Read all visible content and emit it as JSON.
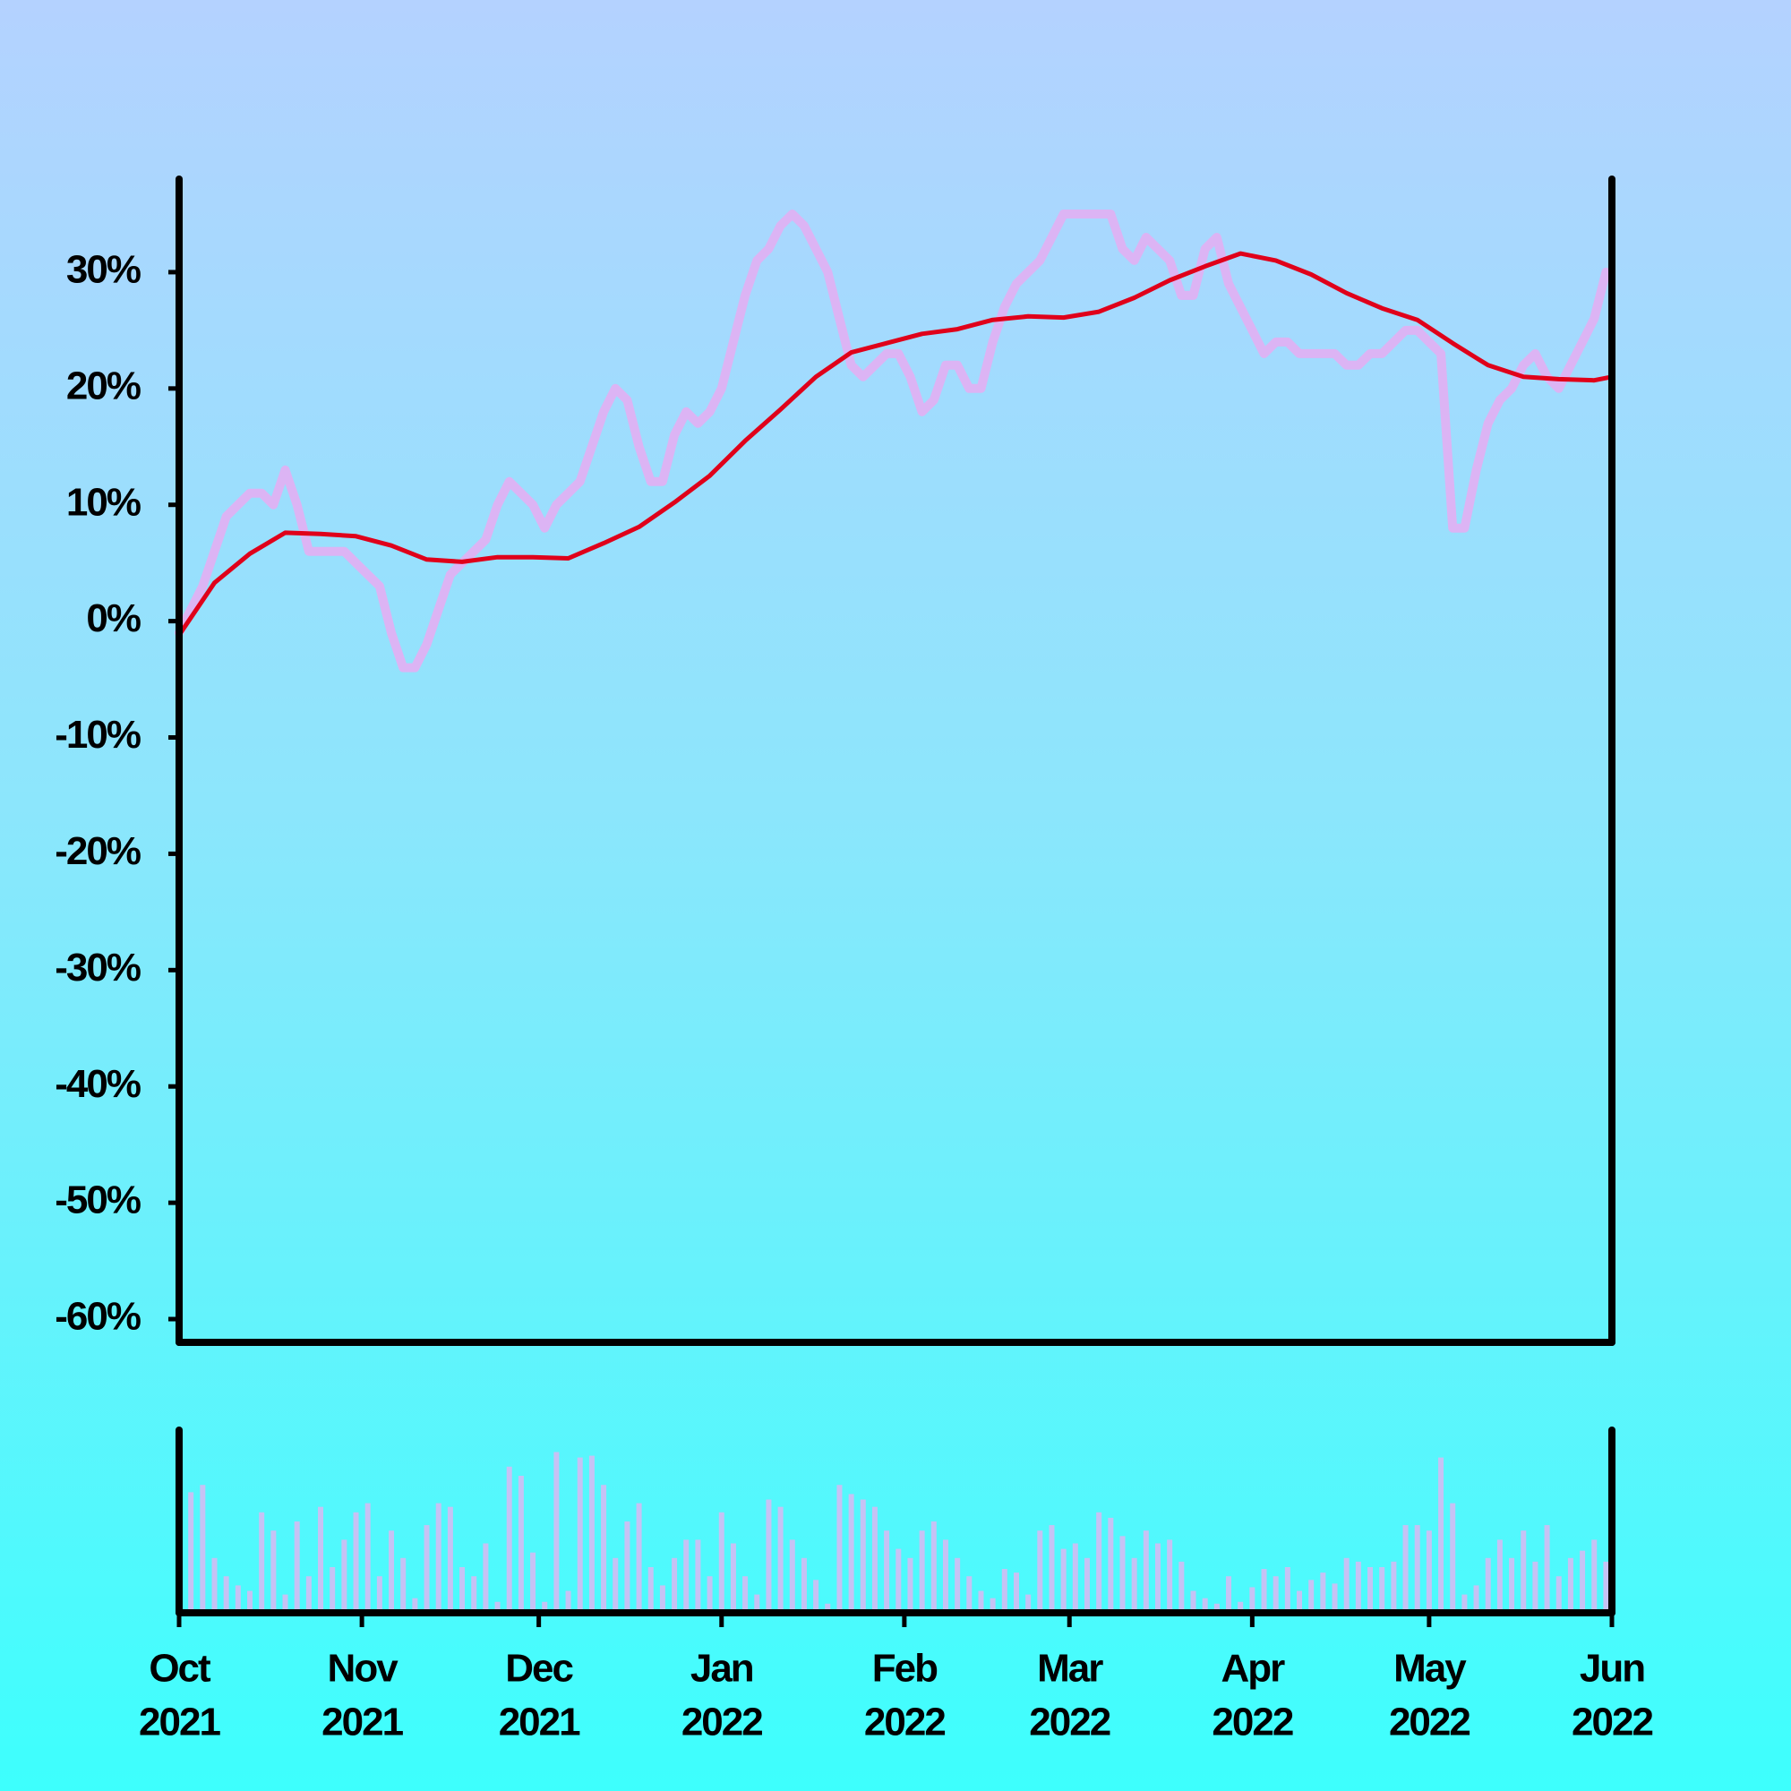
{
  "chart_data": [
    {
      "type": "line",
      "xlim": [
        0,
        243
      ],
      "xticks": [
        {
          "value": 0,
          "label": [
            "Oct",
            "2021"
          ]
        },
        {
          "value": 31,
          "label": [
            "Nov",
            "2021"
          ]
        },
        {
          "value": 61,
          "label": [
            "Dec",
            "2021"
          ]
        },
        {
          "value": 92,
          "label": [
            "Jan",
            "2022"
          ]
        },
        {
          "value": 123,
          "label": [
            "Feb",
            "2022"
          ]
        },
        {
          "value": 151,
          "label": [
            "Mar",
            "2022"
          ]
        },
        {
          "value": 182,
          "label": [
            "Apr",
            "2022"
          ]
        },
        {
          "value": 212,
          "label": [
            "May",
            "2022"
          ]
        },
        {
          "value": 243,
          "label": [
            "Jun",
            "2022"
          ]
        }
      ],
      "ylim": [
        -62,
        38
      ],
      "yticks": [
        {
          "value": -60,
          "label": "-60%"
        },
        {
          "value": -50,
          "label": "-50%"
        },
        {
          "value": -40,
          "label": "-40%"
        },
        {
          "value": -30,
          "label": "-30%"
        },
        {
          "value": -20,
          "label": "-20%"
        },
        {
          "value": -10,
          "label": "-10%"
        },
        {
          "value": 0,
          "label": "0%"
        },
        {
          "value": 10,
          "label": "10%"
        },
        {
          "value": 20,
          "label": "20%"
        },
        {
          "value": 30,
          "label": "30%"
        }
      ],
      "series": [
        {
          "color": "#dcb4f4",
          "x": [
            0,
            2,
            4,
            6,
            8,
            10,
            12,
            14,
            16,
            18,
            20,
            22,
            24,
            26,
            28,
            30,
            32,
            34,
            36,
            38,
            40,
            42,
            44,
            46,
            48,
            50,
            52,
            54,
            56,
            58,
            60,
            62,
            64,
            66,
            68,
            70,
            72,
            74,
            76,
            78,
            80,
            82,
            84,
            86,
            88,
            90,
            92,
            94,
            96,
            98,
            100,
            102,
            104,
            106,
            108,
            110,
            112,
            114,
            116,
            118,
            120,
            122,
            124,
            126,
            128,
            130,
            132,
            134,
            136,
            138,
            140,
            142,
            144,
            146,
            148,
            150,
            152,
            154,
            156,
            158,
            160,
            162,
            164,
            166,
            168,
            170,
            172,
            174,
            176,
            178,
            180,
            182,
            184,
            186,
            188,
            190,
            192,
            194,
            196,
            198,
            200,
            202,
            204,
            206,
            208,
            210,
            212,
            214,
            216,
            218,
            220,
            222,
            224,
            226,
            228,
            230,
            232,
            234,
            236,
            238,
            240,
            242
          ],
          "values": [
            -1,
            1,
            3,
            6,
            9,
            10,
            11,
            11,
            10,
            13,
            10,
            6,
            6,
            6,
            6,
            5,
            4,
            3,
            -1,
            -4,
            -4,
            -2,
            1,
            4,
            5,
            6,
            7,
            10,
            12,
            11,
            10,
            8,
            10,
            11,
            12,
            15,
            18,
            20,
            19,
            15,
            12,
            12,
            16,
            18,
            17,
            18,
            20,
            24,
            28,
            31,
            32,
            34,
            35,
            34,
            32,
            30,
            26,
            22,
            21,
            22,
            23,
            23,
            21,
            18,
            19,
            22,
            22,
            20,
            20,
            24,
            27,
            29,
            30,
            31,
            33,
            35,
            35,
            35,
            35,
            35,
            32,
            31,
            33,
            32,
            31,
            28,
            28,
            32,
            33,
            29,
            27,
            25,
            23,
            24,
            24,
            23,
            23,
            23,
            23,
            22,
            22,
            23,
            23,
            24,
            25,
            25,
            24,
            23,
            8,
            8,
            13,
            17,
            19,
            20,
            22,
            23,
            21,
            20,
            22,
            24,
            26,
            30
          ]
        },
        {
          "color": "#e0001a",
          "x": [
            0,
            6,
            12,
            18,
            24,
            30,
            36,
            42,
            48,
            54,
            60,
            66,
            72,
            78,
            84,
            90,
            96,
            102,
            108,
            114,
            120,
            126,
            132,
            138,
            144,
            150,
            156,
            162,
            168,
            174,
            180,
            186,
            192,
            198,
            204,
            210,
            216,
            222,
            228,
            234,
            240,
            243
          ],
          "values": [
            -1.2,
            3.3,
            5.8,
            7.6,
            7.5,
            7.3,
            6.5,
            5.3,
            5.1,
            5.5,
            5.5,
            5.4,
            6.7,
            8.1,
            10.2,
            12.5,
            15.5,
            18.2,
            21,
            23.1,
            23.9,
            24.7,
            25.1,
            25.9,
            26.2,
            26.1,
            26.6,
            27.8,
            29.3,
            30.5,
            31.6,
            31,
            29.8,
            28.2,
            26.9,
            25.9,
            23.9,
            22,
            21,
            20.8,
            20.7,
            21
          ]
        }
      ]
    },
    {
      "type": "bar",
      "color": "#c6c2f4",
      "ylim": [
        0,
        100
      ],
      "x": [
        0,
        2,
        4,
        6,
        8,
        10,
        12,
        14,
        16,
        18,
        20,
        22,
        24,
        26,
        28,
        30,
        32,
        34,
        36,
        38,
        40,
        42,
        44,
        46,
        48,
        50,
        52,
        54,
        56,
        58,
        60,
        62,
        64,
        66,
        68,
        70,
        72,
        74,
        76,
        78,
        80,
        82,
        84,
        86,
        88,
        90,
        92,
        94,
        96,
        98,
        100,
        102,
        104,
        106,
        108,
        110,
        112,
        114,
        116,
        118,
        120,
        122,
        124,
        126,
        128,
        130,
        132,
        134,
        136,
        138,
        140,
        142,
        144,
        146,
        148,
        150,
        152,
        154,
        156,
        158,
        160,
        162,
        164,
        166,
        168,
        170,
        172,
        174,
        176,
        178,
        180,
        182,
        184,
        186,
        188,
        190,
        192,
        194,
        196,
        198,
        200,
        202,
        204,
        206,
        208,
        210,
        212,
        214,
        216,
        218,
        220,
        222,
        224,
        226,
        228,
        230,
        232,
        234,
        236,
        238,
        240,
        242
      ],
      "values": [
        62,
        66,
        70,
        30,
        20,
        15,
        12,
        55,
        45,
        10,
        50,
        20,
        58,
        25,
        40,
        55,
        60,
        20,
        45,
        30,
        8,
        48,
        60,
        58,
        25,
        20,
        38,
        6,
        80,
        75,
        33,
        6,
        88,
        12,
        85,
        86,
        70,
        30,
        50,
        60,
        25,
        15,
        30,
        40,
        40,
        20,
        55,
        38,
        20,
        10,
        62,
        58,
        40,
        30,
        18,
        5,
        70,
        65,
        62,
        58,
        45,
        35,
        30,
        45,
        50,
        40,
        30,
        20,
        12,
        8,
        24,
        22,
        10,
        45,
        48,
        35,
        38,
        30,
        55,
        52,
        42,
        30,
        45,
        38,
        40,
        28,
        12,
        8,
        5,
        20,
        6,
        14,
        24,
        20,
        25,
        12,
        18,
        22,
        16,
        30,
        28,
        25,
        25,
        28,
        48,
        48,
        45,
        85,
        60,
        10,
        15,
        30,
        40,
        30,
        45,
        28,
        48,
        20,
        30,
        34,
        40,
        28
      ]
    }
  ]
}
